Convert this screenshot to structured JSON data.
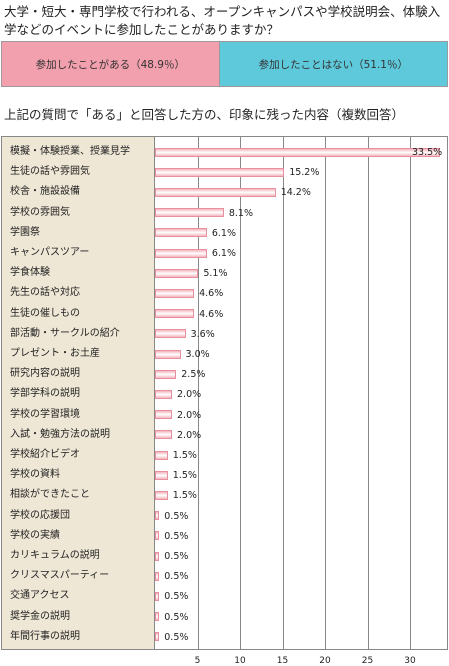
{
  "question1": "大学・短大・専門学校で行われる、オープンキャンパスや学校説明会、体験入学などのイベントに参加したことがありますか？",
  "stacked_bar": {
    "segments": [
      {
        "label": "参加したことがある（48.9％）",
        "value": 48.9,
        "color": "#f2a0ad"
      },
      {
        "label": "参加したことはない（51.1％）",
        "value": 51.1,
        "color": "#5fc9dc"
      }
    ]
  },
  "question2": "上記の質問で「ある」と回答した方の、印象に残った内容（複数回答）",
  "chart_data": {
    "type": "bar",
    "orientation": "horizontal",
    "categories": [
      "模擬・体験授業、授業見学",
      "生徒の話や雰囲気",
      "校舎・施設設備",
      "学校の雰囲気",
      "学園祭",
      "キャンパスツアー",
      "学食体験",
      "先生の話や対応",
      "生徒の催しもの",
      "部活動・サークルの紹介",
      "プレゼント・お土産",
      "研究内容の説明",
      "学部学科の説明",
      "学校の学習環境",
      "入試・勉強方法の説明",
      "学校紹介ビデオ",
      "学校の資料",
      "相談ができたこと",
      "学校の応援団",
      "学校の実績",
      "カリキュラムの説明",
      "クリスマスパーティー",
      "交通アクセス",
      "奨学金の説明",
      "年間行事の説明"
    ],
    "values": [
      33.5,
      15.2,
      14.2,
      8.1,
      6.1,
      6.1,
      5.1,
      4.6,
      4.6,
      3.6,
      3.0,
      2.5,
      2.0,
      2.0,
      2.0,
      1.5,
      1.5,
      1.5,
      0.5,
      0.5,
      0.5,
      0.5,
      0.5,
      0.5,
      0.5
    ],
    "value_labels": [
      "33.5%",
      "15.2%",
      "14.2%",
      "8.1%",
      "6.1%",
      "6.1%",
      "5.1%",
      "4.6%",
      "4.6%",
      "3.6%",
      "3.0%",
      "2.5%",
      "2.0%",
      "2.0%",
      "2.0%",
      "1.5%",
      "1.5%",
      "1.5%",
      "0.5%",
      "0.5%",
      "0.5%",
      "0.5%",
      "0.5%",
      "0.5%",
      "0.5%"
    ],
    "xticks": [
      "5",
      "10",
      "15",
      "20",
      "25",
      "30"
    ],
    "xtick_values": [
      5,
      10,
      15,
      20,
      25,
      30
    ],
    "xlim": [
      0,
      34.5
    ],
    "grid": true,
    "title": "",
    "xlabel": "",
    "ylabel": ""
  }
}
